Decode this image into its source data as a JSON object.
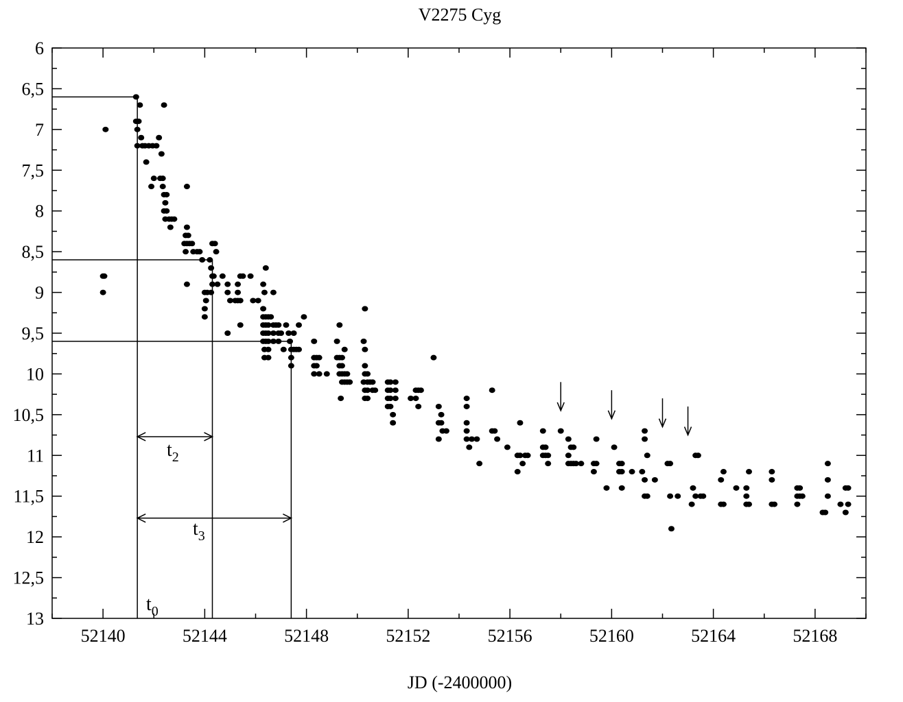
{
  "chart_data": {
    "type": "scatter",
    "title": "V2275 Cyg",
    "xlabel": "JD (-2400000)",
    "ylabel": "",
    "xlim": [
      52138,
      52170
    ],
    "ylim": [
      13,
      6
    ],
    "y_inverted": true,
    "grid": false,
    "x_ticks": [
      52140,
      52144,
      52148,
      52152,
      52156,
      52160,
      52164,
      52168
    ],
    "x_tick_labels": [
      "52140",
      "52144",
      "52148",
      "52152",
      "52156",
      "52160",
      "52164",
      "52168"
    ],
    "y_ticks": [
      6,
      6.5,
      7,
      7.5,
      8,
      8.5,
      9,
      9.5,
      10,
      10.5,
      11,
      11.5,
      12,
      12.5,
      13
    ],
    "y_tick_labels": [
      "6",
      "6,5",
      "7",
      "7,5",
      "8",
      "8,5",
      "9",
      "9,5",
      "10",
      "10,5",
      "11",
      "11,5",
      "12",
      "12,5",
      "13"
    ],
    "points": [
      [
        52140.0,
        8.8
      ],
      [
        52140.05,
        8.8
      ],
      [
        52140.0,
        9.0
      ],
      [
        52140.1,
        7.0
      ],
      [
        52141.3,
        6.6
      ],
      [
        52141.3,
        6.9
      ],
      [
        52141.35,
        7.0
      ],
      [
        52141.4,
        6.9
      ],
      [
        52141.45,
        6.7
      ],
      [
        52141.35,
        7.2
      ],
      [
        52141.5,
        7.1
      ],
      [
        52141.55,
        7.2
      ],
      [
        52141.65,
        7.2
      ],
      [
        52141.7,
        7.4
      ],
      [
        52141.8,
        7.2
      ],
      [
        52141.9,
        7.7
      ],
      [
        52141.95,
        7.2
      ],
      [
        52142.0,
        7.6
      ],
      [
        52142.1,
        7.2
      ],
      [
        52142.2,
        7.1
      ],
      [
        52142.25,
        7.6
      ],
      [
        52142.35,
        7.6
      ],
      [
        52142.3,
        7.3
      ],
      [
        52142.35,
        7.7
      ],
      [
        52142.4,
        7.8
      ],
      [
        52142.4,
        6.7
      ],
      [
        52142.45,
        7.9
      ],
      [
        52142.5,
        7.8
      ],
      [
        52142.4,
        8.0
      ],
      [
        52142.5,
        8.0
      ],
      [
        52142.45,
        8.1
      ],
      [
        52142.6,
        8.1
      ],
      [
        52142.65,
        8.2
      ],
      [
        52142.7,
        8.1
      ],
      [
        52142.8,
        8.1
      ],
      [
        52143.3,
        7.7
      ],
      [
        52143.3,
        8.2
      ],
      [
        52143.25,
        8.3
      ],
      [
        52143.35,
        8.3
      ],
      [
        52143.2,
        8.4
      ],
      [
        52143.3,
        8.4
      ],
      [
        52143.4,
        8.4
      ],
      [
        52143.5,
        8.4
      ],
      [
        52143.25,
        8.5
      ],
      [
        52143.55,
        8.5
      ],
      [
        52143.7,
        8.5
      ],
      [
        52143.8,
        8.5
      ],
      [
        52143.3,
        8.9
      ],
      [
        52143.9,
        8.6
      ],
      [
        52144.0,
        9.0
      ],
      [
        52144.1,
        9.0
      ],
      [
        52144.0,
        9.2
      ],
      [
        52144.0,
        9.3
      ],
      [
        52144.05,
        9.1
      ],
      [
        52144.2,
        8.6
      ],
      [
        52144.25,
        8.7
      ],
      [
        52144.3,
        8.4
      ],
      [
        52144.4,
        8.4
      ],
      [
        52144.35,
        8.8
      ],
      [
        52144.3,
        8.9
      ],
      [
        52144.45,
        8.5
      ],
      [
        52144.25,
        9.0
      ],
      [
        52144.5,
        8.9
      ],
      [
        52144.3,
        8.8
      ],
      [
        52144.7,
        8.8
      ],
      [
        52144.9,
        8.9
      ],
      [
        52144.9,
        9.0
      ],
      [
        52145.0,
        9.1
      ],
      [
        52145.2,
        9.1
      ],
      [
        52145.3,
        9.1
      ],
      [
        52145.3,
        8.9
      ],
      [
        52145.3,
        9.0
      ],
      [
        52145.4,
        8.8
      ],
      [
        52145.5,
        8.8
      ],
      [
        52145.4,
        9.1
      ],
      [
        52145.4,
        9.4
      ],
      [
        52144.9,
        9.5
      ],
      [
        52145.8,
        8.8
      ],
      [
        52145.9,
        9.1
      ],
      [
        52146.1,
        9.1
      ],
      [
        52146.3,
        8.9
      ],
      [
        52146.35,
        9.0
      ],
      [
        52146.3,
        9.2
      ],
      [
        52146.4,
        8.7
      ],
      [
        52146.3,
        9.3
      ],
      [
        52146.4,
        9.3
      ],
      [
        52146.5,
        9.3
      ],
      [
        52146.3,
        9.4
      ],
      [
        52146.4,
        9.4
      ],
      [
        52146.5,
        9.4
      ],
      [
        52146.3,
        9.5
      ],
      [
        52146.4,
        9.5
      ],
      [
        52146.5,
        9.5
      ],
      [
        52146.3,
        9.6
      ],
      [
        52146.4,
        9.6
      ],
      [
        52146.5,
        9.6
      ],
      [
        52146.35,
        9.7
      ],
      [
        52146.5,
        9.7
      ],
      [
        52146.35,
        9.8
      ],
      [
        52146.5,
        9.8
      ],
      [
        52146.6,
        9.3
      ],
      [
        52146.7,
        9.4
      ],
      [
        52146.8,
        9.4
      ],
      [
        52146.7,
        9.0
      ],
      [
        52146.9,
        9.4
      ],
      [
        52146.7,
        9.5
      ],
      [
        52146.9,
        9.5
      ],
      [
        52146.7,
        9.6
      ],
      [
        52146.9,
        9.6
      ],
      [
        52147.0,
        9.5
      ],
      [
        52147.1,
        9.7
      ],
      [
        52147.2,
        9.4
      ],
      [
        52147.3,
        9.5
      ],
      [
        52147.35,
        9.6
      ],
      [
        52147.4,
        9.7
      ],
      [
        52147.5,
        9.7
      ],
      [
        52147.5,
        9.5
      ],
      [
        52147.6,
        9.7
      ],
      [
        52147.7,
        9.7
      ],
      [
        52147.7,
        9.4
      ],
      [
        52147.4,
        9.9
      ],
      [
        52147.4,
        9.8
      ],
      [
        52147.9,
        9.3
      ],
      [
        52148.3,
        9.6
      ],
      [
        52148.3,
        9.8
      ],
      [
        52148.4,
        9.8
      ],
      [
        52148.5,
        9.8
      ],
      [
        52148.3,
        9.9
      ],
      [
        52148.4,
        9.9
      ],
      [
        52148.3,
        10.0
      ],
      [
        52148.5,
        10.0
      ],
      [
        52148.8,
        10.0
      ],
      [
        52149.2,
        9.6
      ],
      [
        52149.2,
        9.8
      ],
      [
        52149.3,
        9.8
      ],
      [
        52149.4,
        9.8
      ],
      [
        52149.3,
        9.9
      ],
      [
        52149.4,
        9.9
      ],
      [
        52149.3,
        10.0
      ],
      [
        52149.4,
        10.0
      ],
      [
        52149.5,
        10.0
      ],
      [
        52149.6,
        10.0
      ],
      [
        52149.4,
        10.1
      ],
      [
        52149.5,
        10.1
      ],
      [
        52149.6,
        10.1
      ],
      [
        52149.3,
        9.4
      ],
      [
        52149.35,
        10.3
      ],
      [
        52149.5,
        9.7
      ],
      [
        52149.7,
        10.1
      ],
      [
        52150.3,
        9.2
      ],
      [
        52150.25,
        9.6
      ],
      [
        52150.3,
        9.7
      ],
      [
        52150.3,
        9.9
      ],
      [
        52150.3,
        10.0
      ],
      [
        52150.4,
        10.0
      ],
      [
        52150.25,
        10.1
      ],
      [
        52150.4,
        10.1
      ],
      [
        52150.5,
        10.1
      ],
      [
        52150.6,
        10.1
      ],
      [
        52150.3,
        10.2
      ],
      [
        52150.4,
        10.2
      ],
      [
        52150.6,
        10.2
      ],
      [
        52150.3,
        10.3
      ],
      [
        52150.4,
        10.3
      ],
      [
        52150.7,
        10.2
      ],
      [
        52151.2,
        10.1
      ],
      [
        52151.3,
        10.1
      ],
      [
        52151.5,
        10.1
      ],
      [
        52151.2,
        10.2
      ],
      [
        52151.3,
        10.2
      ],
      [
        52151.5,
        10.2
      ],
      [
        52151.2,
        10.3
      ],
      [
        52151.3,
        10.3
      ],
      [
        52151.5,
        10.3
      ],
      [
        52151.2,
        10.4
      ],
      [
        52151.3,
        10.4
      ],
      [
        52151.4,
        10.5
      ],
      [
        52151.4,
        10.6
      ],
      [
        52152.1,
        10.3
      ],
      [
        52152.3,
        10.2
      ],
      [
        52152.4,
        10.2
      ],
      [
        52152.3,
        10.3
      ],
      [
        52152.4,
        10.4
      ],
      [
        52152.5,
        10.2
      ],
      [
        52153.0,
        9.8
      ],
      [
        52153.2,
        10.4
      ],
      [
        52153.3,
        10.5
      ],
      [
        52153.2,
        10.6
      ],
      [
        52153.3,
        10.6
      ],
      [
        52153.35,
        10.7
      ],
      [
        52153.5,
        10.7
      ],
      [
        52153.2,
        10.8
      ],
      [
        52154.3,
        10.3
      ],
      [
        52154.3,
        10.4
      ],
      [
        52154.3,
        10.6
      ],
      [
        52154.3,
        10.7
      ],
      [
        52154.3,
        10.8
      ],
      [
        52154.5,
        10.8
      ],
      [
        52154.4,
        10.9
      ],
      [
        52154.7,
        10.8
      ],
      [
        52154.8,
        11.1
      ],
      [
        52155.3,
        10.2
      ],
      [
        52155.3,
        10.7
      ],
      [
        52155.4,
        10.7
      ],
      [
        52155.5,
        10.8
      ],
      [
        52155.9,
        10.9
      ],
      [
        52156.3,
        11.0
      ],
      [
        52156.4,
        11.0
      ],
      [
        52156.6,
        11.0
      ],
      [
        52156.7,
        11.0
      ],
      [
        52156.3,
        11.2
      ],
      [
        52156.4,
        10.6
      ],
      [
        52156.5,
        11.1
      ],
      [
        52157.3,
        10.7
      ],
      [
        52157.3,
        10.9
      ],
      [
        52157.4,
        10.9
      ],
      [
        52157.3,
        11.0
      ],
      [
        52157.4,
        11.0
      ],
      [
        52157.5,
        11.0
      ],
      [
        52157.5,
        11.1
      ],
      [
        52158.0,
        10.7
      ],
      [
        52158.3,
        10.8
      ],
      [
        52158.3,
        11.0
      ],
      [
        52158.4,
        10.9
      ],
      [
        52158.5,
        10.9
      ],
      [
        52158.3,
        11.1
      ],
      [
        52158.4,
        11.1
      ],
      [
        52158.5,
        11.1
      ],
      [
        52158.6,
        11.1
      ],
      [
        52158.8,
        11.1
      ],
      [
        52159.3,
        11.1
      ],
      [
        52159.4,
        11.1
      ],
      [
        52159.4,
        10.8
      ],
      [
        52159.3,
        11.2
      ],
      [
        52159.8,
        11.4
      ],
      [
        52160.1,
        10.9
      ],
      [
        52160.3,
        11.1
      ],
      [
        52160.4,
        11.1
      ],
      [
        52160.3,
        11.2
      ],
      [
        52160.4,
        11.2
      ],
      [
        52160.4,
        11.4
      ],
      [
        52160.8,
        11.2
      ],
      [
        52161.2,
        11.2
      ],
      [
        52161.3,
        10.7
      ],
      [
        52161.3,
        10.8
      ],
      [
        52161.3,
        11.3
      ],
      [
        52161.3,
        11.5
      ],
      [
        52161.4,
        11.5
      ],
      [
        52161.7,
        11.3
      ],
      [
        52161.4,
        11.0
      ],
      [
        52162.2,
        11.1
      ],
      [
        52162.3,
        11.1
      ],
      [
        52162.3,
        11.5
      ],
      [
        52162.35,
        11.9
      ],
      [
        52162.6,
        11.5
      ],
      [
        52163.2,
        11.4
      ],
      [
        52163.3,
        11.0
      ],
      [
        52163.4,
        11.0
      ],
      [
        52163.3,
        11.5
      ],
      [
        52163.5,
        11.5
      ],
      [
        52163.6,
        11.5
      ],
      [
        52163.15,
        11.6
      ],
      [
        52164.3,
        11.3
      ],
      [
        52164.4,
        11.2
      ],
      [
        52164.3,
        11.6
      ],
      [
        52164.4,
        11.6
      ],
      [
        52164.9,
        11.4
      ],
      [
        52165.3,
        11.4
      ],
      [
        52165.3,
        11.5
      ],
      [
        52165.4,
        11.2
      ],
      [
        52165.3,
        11.6
      ],
      [
        52165.4,
        11.6
      ],
      [
        52166.3,
        11.2
      ],
      [
        52166.3,
        11.3
      ],
      [
        52166.3,
        11.6
      ],
      [
        52166.4,
        11.6
      ],
      [
        52167.3,
        11.4
      ],
      [
        52167.4,
        11.4
      ],
      [
        52167.3,
        11.5
      ],
      [
        52167.4,
        11.5
      ],
      [
        52167.5,
        11.5
      ],
      [
        52167.3,
        11.6
      ],
      [
        52168.3,
        11.7
      ],
      [
        52168.4,
        11.7
      ],
      [
        52168.5,
        11.1
      ],
      [
        52168.5,
        11.3
      ],
      [
        52168.5,
        11.5
      ],
      [
        52169.0,
        11.6
      ],
      [
        52169.2,
        11.4
      ],
      [
        52169.3,
        11.4
      ],
      [
        52169.3,
        11.6
      ],
      [
        52169.2,
        11.7
      ]
    ],
    "markers": {
      "t0": {
        "label": "t",
        "sub": "0",
        "x": 52141.35,
        "mag": 6.6
      },
      "t2": {
        "label": "t",
        "sub": "2",
        "x": 52144.3,
        "mag": 8.6
      },
      "t3": {
        "label": "t",
        "sub": "3",
        "x": 52147.4,
        "mag": 9.6
      }
    },
    "arrow_row_mags": [
      10.77,
      11.77
    ],
    "upper_limit_arrows": [
      {
        "x": 52158.0,
        "from": 10.1,
        "to": 10.45
      },
      {
        "x": 52160.0,
        "from": 10.2,
        "to": 10.55
      },
      {
        "x": 52162.0,
        "from": 10.3,
        "to": 10.65
      },
      {
        "x": 52163.0,
        "from": 10.4,
        "to": 10.75
      }
    ]
  }
}
